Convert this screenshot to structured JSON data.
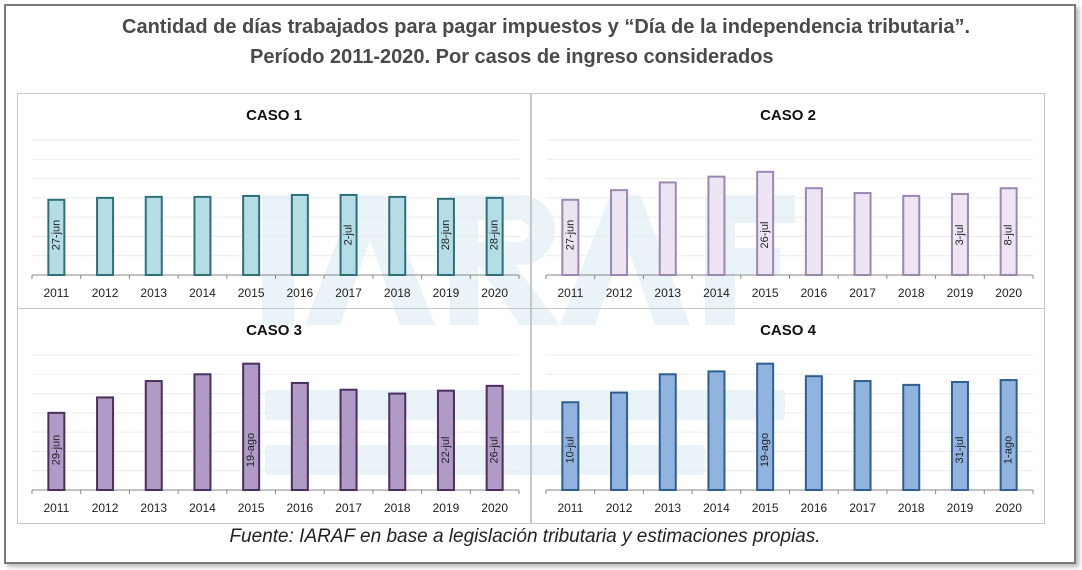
{
  "title": {
    "line1": "Cantidad de días trabajados para pagar impuestos y “Día de la independencia tributaria”.",
    "line2": "Período 2011-2020. Por casos de ingreso considerados"
  },
  "watermark": {
    "logo_text": "IARAF",
    "line1": "INSTITUTO ARGENTINO",
    "line2": "DE ANALISIS FISCAL"
  },
  "source": "Fuente: IARAF en base a legislación tributaria y estimaciones propias.",
  "chart_data": [
    {
      "type": "bar",
      "title": "CASO 1",
      "categories": [
        "2011",
        "2012",
        "2013",
        "2014",
        "2015",
        "2016",
        "2017",
        "2018",
        "2019",
        "2020"
      ],
      "values": [
        178,
        180,
        181,
        181,
        182,
        183,
        183,
        181,
        179,
        180
      ],
      "data_labels": {
        "2011": "27-jun",
        "2017": "2-jul",
        "2019": "28-jun",
        "2020": "28-jun"
      },
      "ylim": [
        100,
        240
      ],
      "grid": true,
      "fill": "#b5dde6",
      "stroke": "#2f6f7a"
    },
    {
      "type": "bar",
      "title": "CASO 2",
      "categories": [
        "2011",
        "2012",
        "2013",
        "2014",
        "2015",
        "2016",
        "2017",
        "2018",
        "2019",
        "2020"
      ],
      "values": [
        178,
        188,
        196,
        202,
        207,
        190,
        185,
        182,
        184,
        190
      ],
      "data_labels": {
        "2011": "27-jun",
        "2015": "26-jul",
        "2019": "3-jul",
        "2020": "8-jul"
      },
      "ylim": [
        100,
        240
      ],
      "grid": true,
      "fill": "#ede5f1",
      "stroke": "#9b88b2"
    },
    {
      "type": "bar",
      "title": "CASO 3",
      "categories": [
        "2011",
        "2012",
        "2013",
        "2014",
        "2015",
        "2016",
        "2017",
        "2018",
        "2019",
        "2020"
      ],
      "values": [
        180,
        196,
        213,
        220,
        231,
        211,
        204,
        200,
        203,
        208
      ],
      "data_labels": {
        "2011": "29-jun",
        "2015": "19-ago",
        "2019": "22-jul",
        "2020": "26-jul"
      },
      "ylim": [
        100,
        240
      ],
      "grid": true,
      "fill": "#b09bc7",
      "stroke": "#4b2f60"
    },
    {
      "type": "bar",
      "title": "CASO 4",
      "categories": [
        "2011",
        "2012",
        "2013",
        "2014",
        "2015",
        "2016",
        "2017",
        "2018",
        "2019",
        "2020"
      ],
      "values": [
        191,
        201,
        220,
        223,
        231,
        218,
        213,
        209,
        212,
        214
      ],
      "data_labels": {
        "2011": "10-jul",
        "2015": "19-ago",
        "2019": "31-jul",
        "2020": "1-ago"
      },
      "ylim": [
        100,
        240
      ],
      "grid": true,
      "fill": "#90b4df",
      "stroke": "#2f5e8f"
    }
  ]
}
